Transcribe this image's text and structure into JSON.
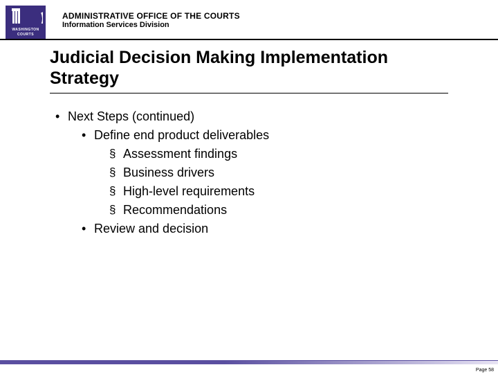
{
  "logo": {
    "line1": "WASHINGTON",
    "line2": "COURTS",
    "bg_color": "#3b2e7e",
    "fg_color": "#ffffff"
  },
  "header": {
    "line1": "ADMINISTRATIVE OFFICE OF THE COURTS",
    "line2": "Information Services Division"
  },
  "title": "Judicial Decision Making Implementation Strategy",
  "content": {
    "heading": "Next Steps (continued)",
    "items": [
      {
        "label": "Define end product deliverables",
        "sub": [
          "Assessment findings",
          "Business drivers",
          "High-level requirements",
          "Recommendations"
        ]
      },
      {
        "label": "Review and decision",
        "sub": []
      }
    ]
  },
  "footer": {
    "page_label": "Page 58",
    "bar_color_start": "#5a4fa0",
    "bar_color_end": "#e8e4f4"
  },
  "typography": {
    "header_fontsize_pt": 12,
    "title_fontsize_pt": 25,
    "body_fontsize_pt": 18,
    "font_family": "Verdana"
  },
  "colors": {
    "text": "#000000",
    "background": "#ffffff",
    "rule": "#000000",
    "accent": "#3b2e7e"
  }
}
